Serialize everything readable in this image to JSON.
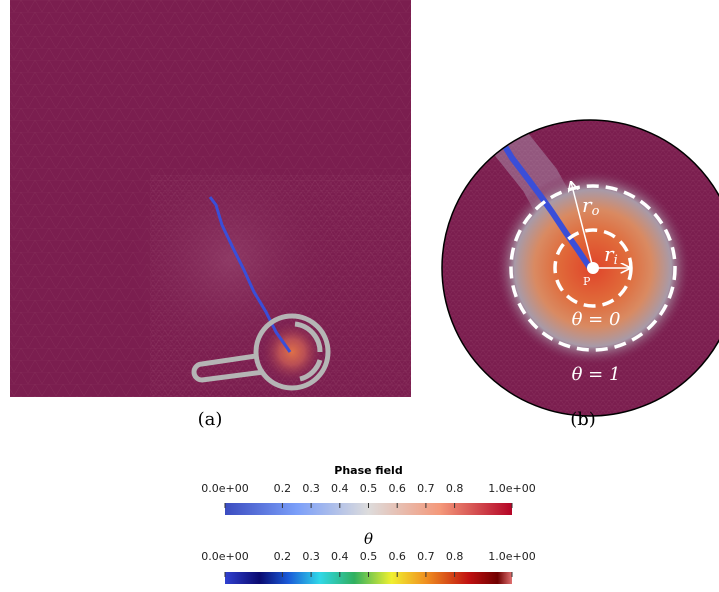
{
  "panel_a": {
    "label": "(a)"
  },
  "panel_b": {
    "label": "(b)",
    "point": "P",
    "outer_radius": {
      "symbol": "r",
      "subscript": "o"
    },
    "inner_radius": {
      "symbol": "r",
      "subscript": "i"
    },
    "inner_region": "θ = 0",
    "outer_region": "θ = 1"
  },
  "colorbars": [
    {
      "title": "Phase field",
      "min": 0,
      "max": 1,
      "ticks": [
        {
          "value": 0,
          "label": "0.0e+00"
        },
        0.2,
        0.3,
        0.4,
        0.5,
        0.6,
        0.7,
        0.8,
        {
          "value": 1,
          "label": "1.0e+00"
        }
      ]
    },
    {
      "title": "θ",
      "min": 0,
      "max": 1,
      "ticks": [
        {
          "value": 0,
          "label": "0.0e+00"
        },
        0.2,
        0.3,
        0.4,
        0.5,
        0.6,
        0.7,
        0.8,
        {
          "value": 1,
          "label": "1.0e+00"
        }
      ]
    }
  ]
}
